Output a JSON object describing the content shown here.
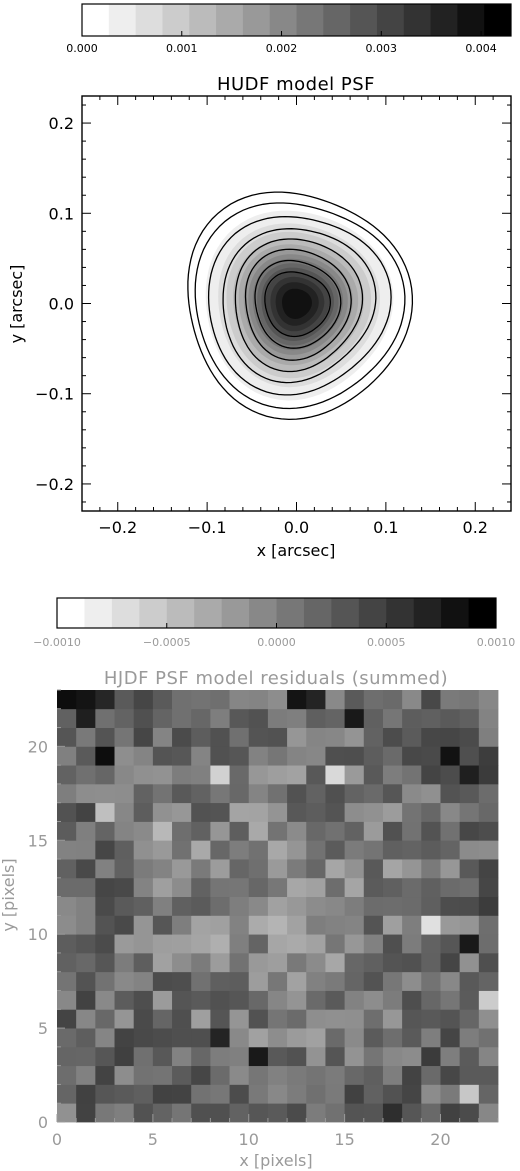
{
  "chart_data": [
    {
      "type": "contour",
      "title": "HUDF model PSF",
      "xlabel": "x [arcsec]",
      "ylabel": "y [arcsec]",
      "xlim": [
        -0.24,
        0.24
      ],
      "ylim": [
        -0.23,
        0.23
      ],
      "x_ticks": [
        "−0.2",
        "−0.1",
        "0.0",
        "0.1",
        "0.2"
      ],
      "x_tick_values": [
        -0.2,
        -0.1,
        0.0,
        0.1,
        0.2
      ],
      "y_ticks": [
        "−0.2",
        "−0.1",
        "0.0",
        "0.1",
        "0.2"
      ],
      "y_tick_values": [
        -0.2,
        -0.1,
        0.0,
        0.1,
        0.2
      ],
      "colorbar": {
        "min": 0.0,
        "max": 0.0043,
        "levels": 16,
        "tick_labels": [
          "0.000",
          "0.001",
          "0.002",
          "0.003",
          "0.004"
        ],
        "tick_values": [
          0.0,
          0.001,
          0.002,
          0.003,
          0.004
        ]
      },
      "psf": {
        "peak": 0.0043,
        "center": [
          0.0,
          0.0
        ]
      },
      "contour_radii_arcsec": [
        0.125,
        0.115,
        0.1,
        0.085,
        0.072,
        0.06,
        0.048,
        0.036
      ],
      "grid": false
    },
    {
      "type": "heatmap",
      "title": "HJDF PSF model residuals (summed)",
      "xlabel": "x [pixels]",
      "ylabel": "y [pixels]",
      "xlim": [
        0,
        23
      ],
      "ylim": [
        0,
        23
      ],
      "x_ticks": [
        "0",
        "5",
        "10",
        "15",
        "20"
      ],
      "x_tick_values": [
        0,
        5,
        10,
        15,
        20
      ],
      "y_ticks": [
        "0",
        "5",
        "10",
        "15",
        "20"
      ],
      "y_tick_values": [
        0,
        5,
        10,
        15,
        20
      ],
      "colorbar": {
        "min": -0.001,
        "max": 0.001,
        "levels": 16,
        "tick_labels": [
          "−0.0010",
          "−0.0005",
          "0.0000",
          "0.0005",
          "0.0010"
        ],
        "tick_values": [
          -0.001,
          -0.0005,
          0.0,
          0.0005,
          0.001
        ]
      },
      "grid_size": [
        23,
        23
      ],
      "grid": false
    }
  ]
}
